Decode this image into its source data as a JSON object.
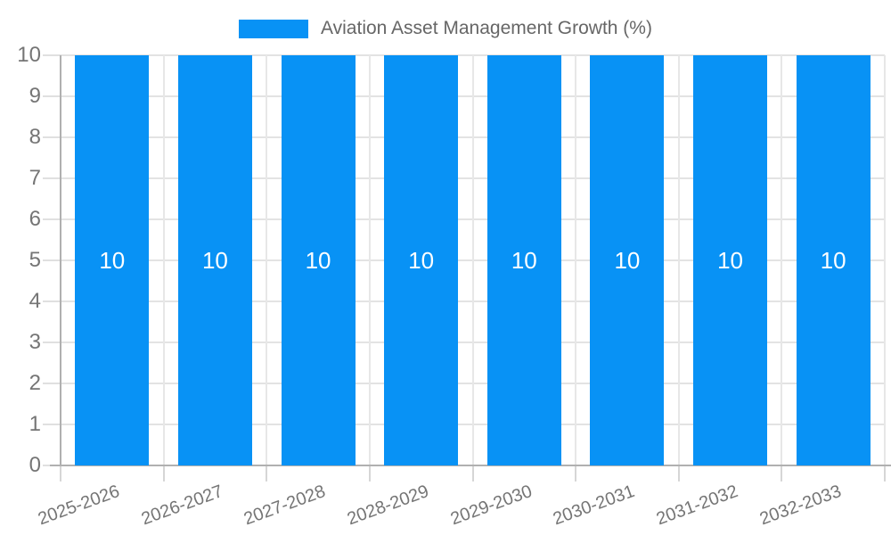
{
  "legend": {
    "label": "Aviation Asset Management Growth (%)"
  },
  "chart_data": {
    "type": "bar",
    "title": "",
    "xlabel": "",
    "ylabel": "",
    "categories": [
      "2025-2026",
      "2026-2027",
      "2027-2028",
      "2028-2029",
      "2029-2030",
      "2030-2031",
      "2031-2032",
      "2032-2033"
    ],
    "series": [
      {
        "name": "Aviation Asset Management Growth (%)",
        "values": [
          10,
          10,
          10,
          10,
          10,
          10,
          10,
          10
        ]
      }
    ],
    "bar_value_labels": [
      "10",
      "10",
      "10",
      "10",
      "10",
      "10",
      "10",
      "10"
    ],
    "ylim": [
      0,
      10
    ],
    "yticks": [
      0,
      1,
      2,
      3,
      4,
      5,
      6,
      7,
      8,
      9,
      10
    ],
    "grid": true,
    "legend_position": "top-center",
    "x_tick_rotation_deg": -20
  },
  "style": {
    "bar_color": "#0892F5",
    "value_label_color": "#ffffff",
    "legend_text_color": "#666666",
    "tick_label_color": "#757575",
    "axis_line_color": "#b0b0b0",
    "grid_line_color": "#e3e3e3"
  }
}
